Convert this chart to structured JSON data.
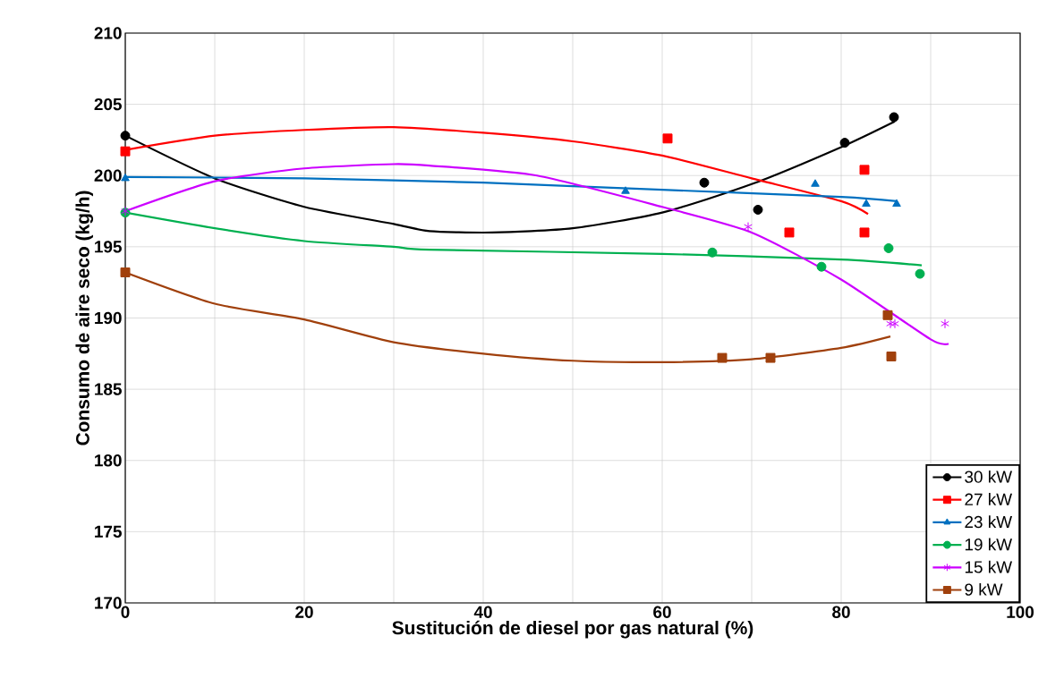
{
  "chart_data": {
    "type": "scatter",
    "xlabel": "Sustitución de diesel por gas natural (%)",
    "ylabel": "Consumo de aire seco  (kg/h)",
    "xlim": [
      0,
      100
    ],
    "ylim": [
      170,
      210
    ],
    "xticks": [
      0,
      20,
      40,
      60,
      80,
      100
    ],
    "yticks": [
      170,
      175,
      180,
      185,
      190,
      195,
      200,
      205,
      210
    ],
    "grid": true,
    "legend": "bottom right",
    "series": [
      {
        "name": "30 kW",
        "color": "#000000",
        "marker": "circle",
        "x": [
          0,
          64.7,
          70.7,
          80.4,
          85.9
        ],
        "values": [
          202.8,
          199.5,
          197.6,
          202.3,
          204.1
        ]
      },
      {
        "name": "27 kW",
        "color": "#ff0000",
        "marker": "square",
        "x": [
          0,
          60.6,
          74.2,
          82.6,
          82.6
        ],
        "values": [
          201.7,
          202.6,
          196.0,
          200.4,
          196.0
        ]
      },
      {
        "name": "23 kW",
        "color": "#0070c0",
        "marker": "triangle",
        "x": [
          0,
          55.9,
          77.1,
          82.8,
          86.2
        ],
        "values": [
          199.8,
          198.9,
          199.4,
          198.0,
          198.0
        ]
      },
      {
        "name": "19 kW",
        "color": "#00b050",
        "marker": "circle",
        "x": [
          0,
          65.6,
          77.8,
          85.3,
          88.8
        ],
        "values": [
          197.4,
          194.6,
          193.6,
          194.9,
          193.1
        ]
      },
      {
        "name": "15 kW",
        "color": "#cc00ff",
        "marker": "cross",
        "x": [
          0,
          69.6,
          85.5,
          86.0,
          91.6
        ],
        "values": [
          197.5,
          196.4,
          189.6,
          189.6,
          189.6
        ]
      },
      {
        "name": "9 kW",
        "color": "#a0400c",
        "marker": "square",
        "x": [
          0,
          66.7,
          72.1,
          85.2,
          85.6
        ],
        "values": [
          193.2,
          187.2,
          187.2,
          190.2,
          187.3
        ]
      },
      {
        "type": "line",
        "color": "#000000",
        "x": [
          0,
          10,
          20,
          30,
          34,
          41,
          50,
          60,
          70,
          80,
          86
        ],
        "values": [
          202.8,
          199.8,
          197.8,
          196.6,
          196.1,
          196.0,
          196.3,
          197.4,
          199.4,
          202.0,
          203.8
        ]
      },
      {
        "type": "line",
        "color": "#ff0000",
        "x": [
          0,
          10,
          20,
          30,
          40,
          50,
          60,
          70,
          80,
          83
        ],
        "values": [
          201.8,
          202.8,
          203.2,
          203.4,
          203.0,
          202.4,
          201.4,
          199.8,
          198.2,
          197.3
        ]
      },
      {
        "type": "line",
        "color": "#0070c0",
        "x": [
          0,
          20,
          40,
          60,
          80,
          86.2
        ],
        "values": [
          199.9,
          199.8,
          199.5,
          199.0,
          198.5,
          198.2
        ]
      },
      {
        "type": "line",
        "color": "#00b050",
        "x": [
          0,
          10,
          20,
          30,
          34,
          60,
          80,
          89
        ],
        "values": [
          197.4,
          196.3,
          195.4,
          195.0,
          194.8,
          194.5,
          194.1,
          193.7
        ]
      },
      {
        "type": "line",
        "color": "#cc00ff",
        "x": [
          0,
          10,
          20,
          30,
          34,
          46,
          60,
          70,
          80,
          90,
          92
        ],
        "values": [
          197.5,
          199.6,
          200.5,
          200.8,
          200.7,
          200.0,
          197.8,
          196.0,
          192.7,
          188.5,
          188.2
        ]
      },
      {
        "type": "line",
        "color": "#a0400c",
        "x": [
          0,
          10,
          20,
          30,
          40,
          50,
          60,
          70,
          80,
          85.5
        ],
        "values": [
          193.2,
          191.0,
          189.9,
          188.3,
          187.5,
          187.0,
          186.9,
          187.1,
          187.9,
          188.7
        ]
      }
    ]
  }
}
